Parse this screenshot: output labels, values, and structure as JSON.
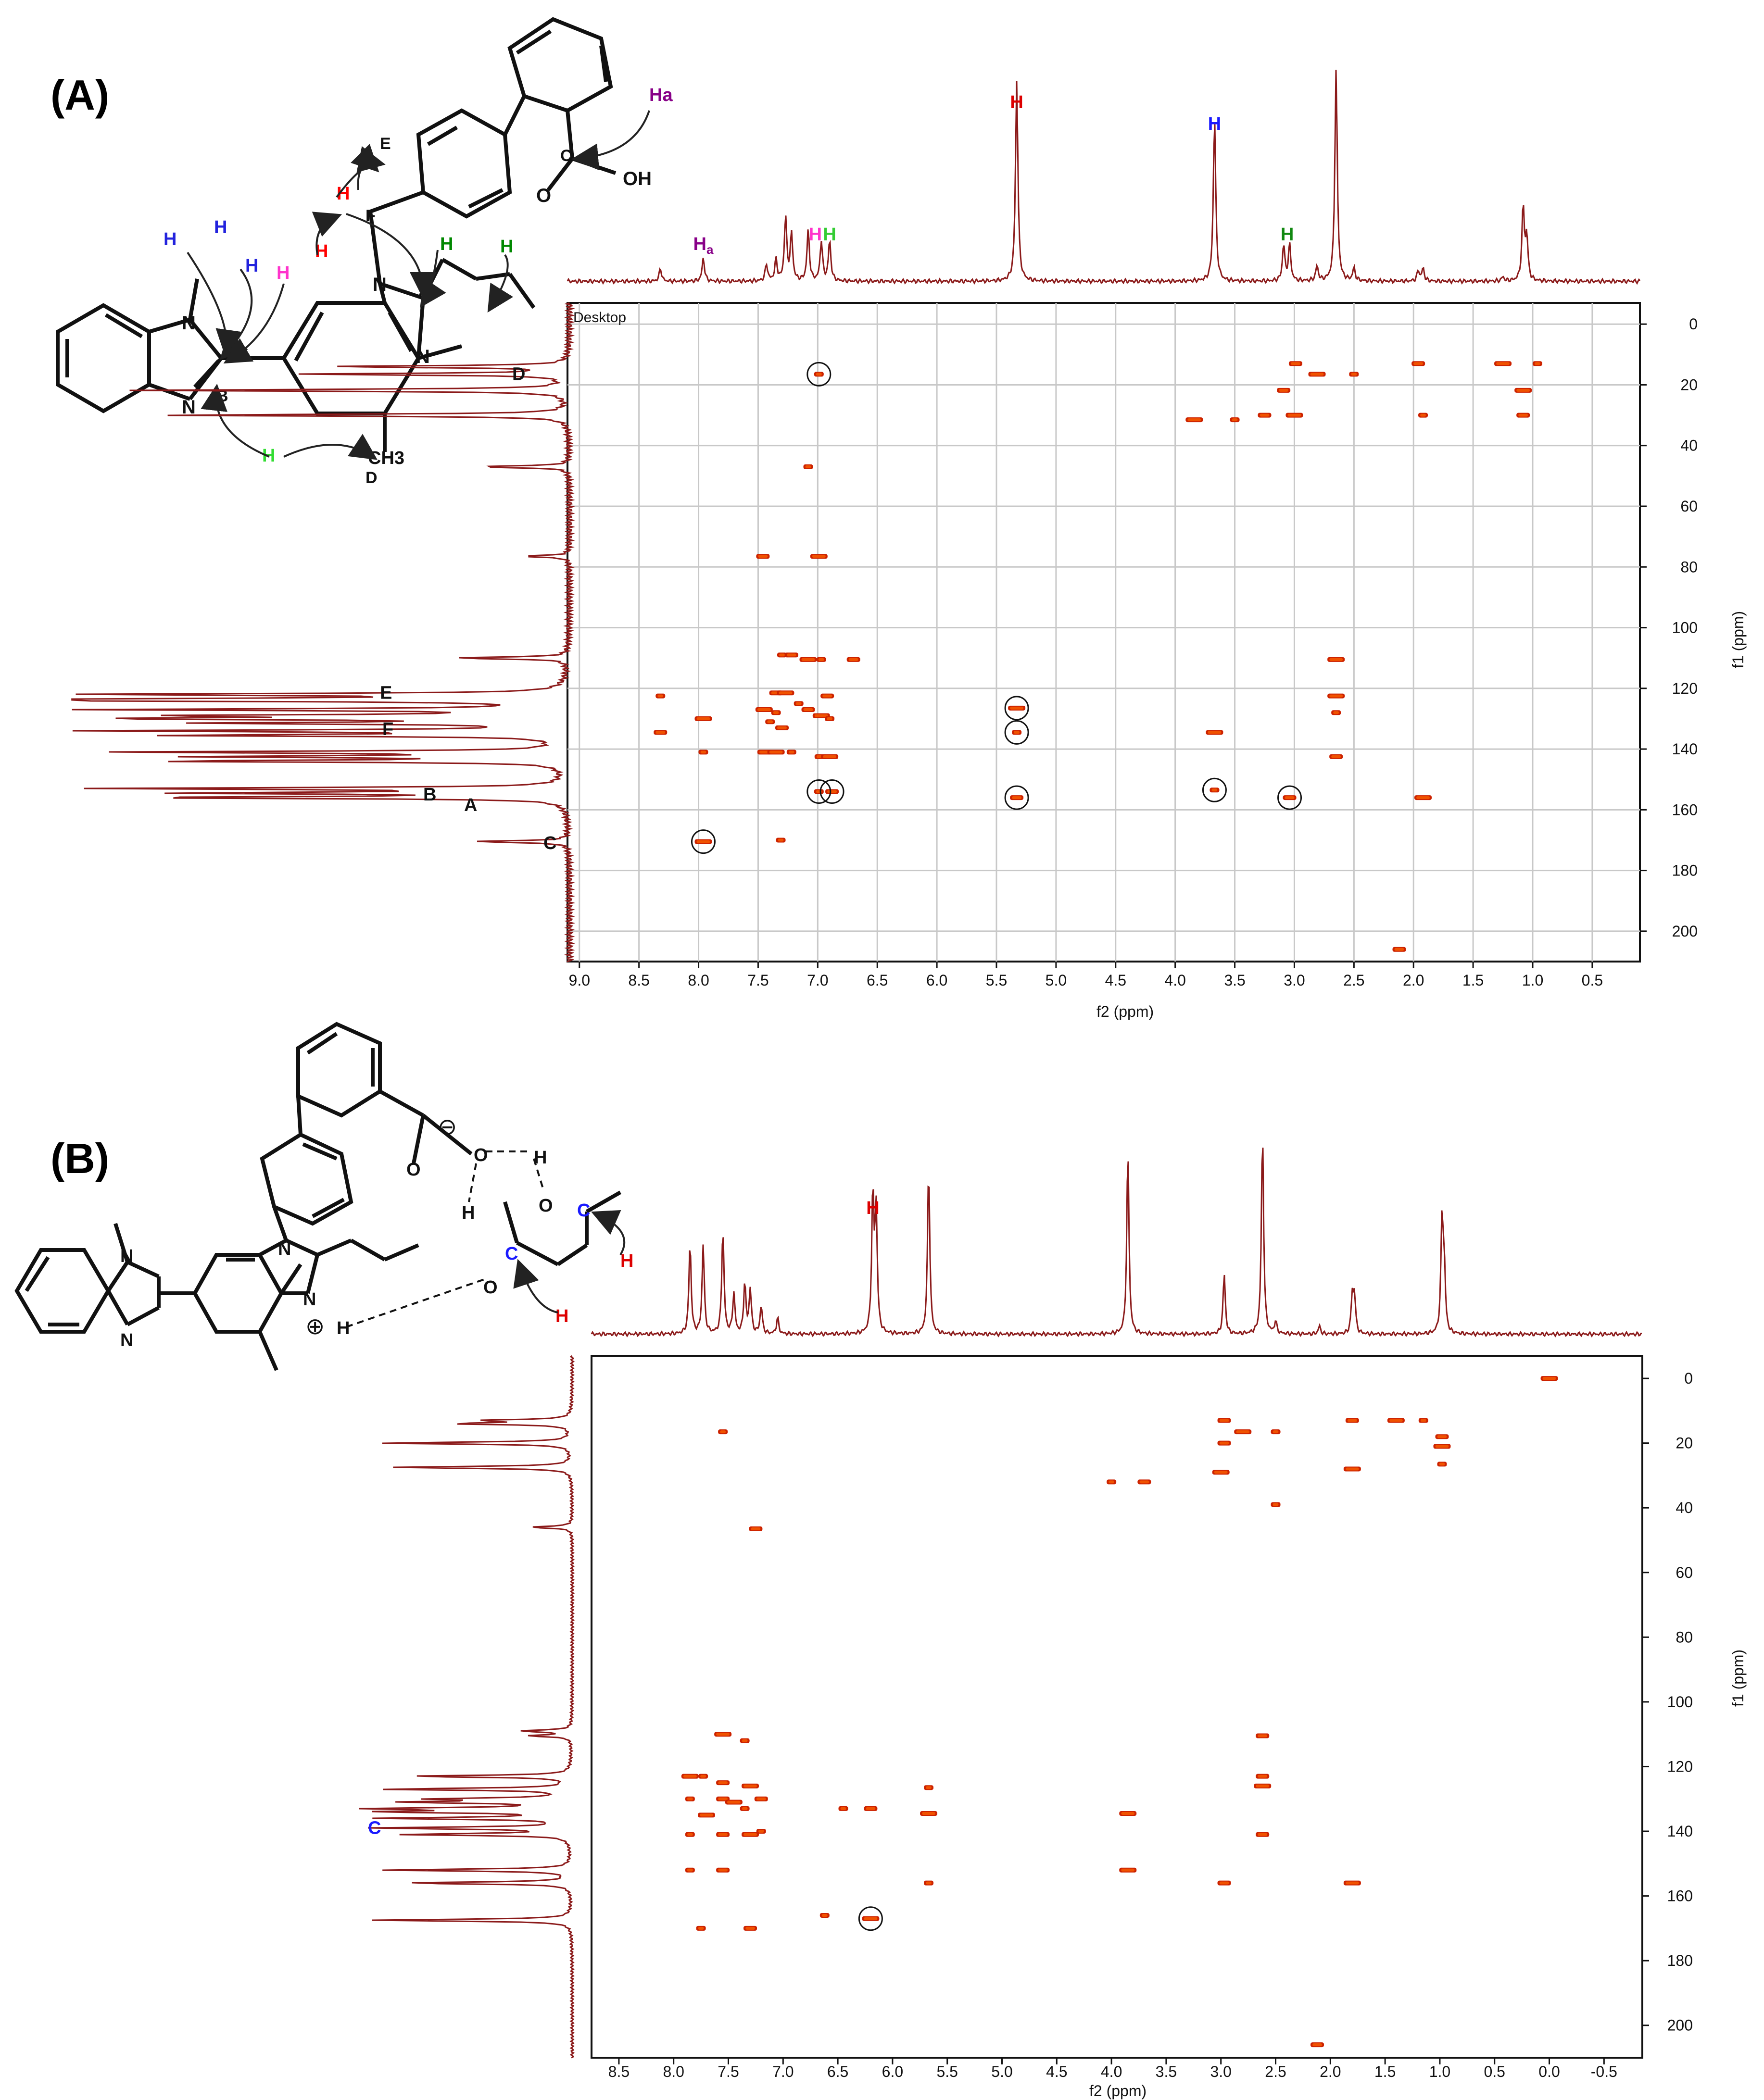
{
  "panels": [
    {
      "label": "(A)",
      "corner_label": "Desktop",
      "xlabel": "f2 (ppm)",
      "ylabel": "f1 (ppm)",
      "xlim": [
        9.1,
        0.1
      ],
      "ylim": [
        -7,
        210
      ],
      "x_ticks": [
        "9.0",
        "8.5",
        "8.0",
        "7.5",
        "7.0",
        "6.5",
        "6.0",
        "5.5",
        "5.0",
        "4.5",
        "4.0",
        "3.5",
        "3.0",
        "2.5",
        "2.0",
        "1.5",
        "1.0",
        "0.5"
      ],
      "y_ticks": [
        "0",
        "20",
        "40",
        "60",
        "80",
        "100",
        "120",
        "140",
        "160",
        "180",
        "200"
      ],
      "molecule_labels": {
        "top_atoms": [
          {
            "text": "H",
            "color": "#2222dd"
          },
          {
            "text": "H",
            "color": "#2222dd"
          },
          {
            "text": "H",
            "color": "#2222dd"
          },
          {
            "text": "H",
            "color": "#ff33cc"
          },
          {
            "text": "H",
            "color": "#ff0000"
          },
          {
            "text": "H",
            "color": "#ff0000"
          },
          {
            "text": "H",
            "color": "#008800"
          },
          {
            "text": "H",
            "color": "#008800"
          },
          {
            "text": "H",
            "color": "#33dd33"
          },
          {
            "text": "Ha",
            "color": "#880088"
          }
        ],
        "letters": [
          "A",
          "B",
          "C",
          "D",
          "E",
          "F",
          "N",
          "N",
          "N",
          "N",
          "O",
          "OH",
          "CH3"
        ]
      },
      "top_peak_labels": [
        {
          "text": "H",
          "sub": "a",
          "color": "#880088"
        },
        {
          "text": "H",
          "color": "#ff33cc"
        },
        {
          "text": "H",
          "color": "#33cc33"
        },
        {
          "text": "H",
          "color": "#dd0000"
        },
        {
          "text": "H",
          "color": "#1a1aff"
        },
        {
          "text": "H",
          "color": "#118811"
        }
      ],
      "side_peak_labels": [
        "D",
        "E",
        "F",
        "B",
        "A",
        "C"
      ]
    },
    {
      "label": "(B)",
      "xlabel": "f2 (ppm)",
      "ylabel": "f1 (ppm)",
      "xlim": [
        8.75,
        -0.85
      ],
      "ylim": [
        -7,
        210
      ],
      "x_ticks": [
        "8.5",
        "8.0",
        "7.5",
        "7.0",
        "6.5",
        "6.0",
        "5.5",
        "5.0",
        "4.5",
        "4.0",
        "3.5",
        "3.0",
        "2.5",
        "2.0",
        "1.5",
        "1.0",
        "0.5",
        "0.0",
        "-0.5"
      ],
      "y_ticks": [
        "0",
        "20",
        "40",
        "60",
        "80",
        "100",
        "120",
        "140",
        "160",
        "180",
        "200"
      ],
      "molecule_labels": {
        "charges": [
          "⊖",
          "⊕"
        ],
        "atoms": [
          "N",
          "N",
          "N",
          "N",
          "O",
          "O",
          "O",
          "O",
          "H",
          "H",
          "H"
        ],
        "colored_atoms": [
          {
            "text": "C",
            "color": "#1a1aff"
          },
          {
            "text": "C",
            "color": "#1a1aff"
          },
          {
            "text": "H",
            "color": "#dd0000"
          },
          {
            "text": "H",
            "color": "#dd0000"
          }
        ]
      },
      "top_peak_labels": [
        {
          "text": "H",
          "color": "#dd0000"
        }
      ],
      "side_peak_labels": [
        {
          "text": "C",
          "color": "#1a1aff"
        }
      ]
    }
  ],
  "chart_data": [
    {
      "type": "heatmap",
      "title": "(A)",
      "xlabel": "f2 (ppm)",
      "ylabel": "f1 (ppm)",
      "xlim": [
        9.1,
        0.1
      ],
      "ylim": [
        -7,
        210
      ],
      "grid": true,
      "top_spectrum_peaks": [
        [
          8.32,
          0.06
        ],
        [
          7.96,
          0.11
        ],
        [
          7.43,
          0.08
        ],
        [
          7.35,
          0.1
        ],
        [
          7.27,
          0.3
        ],
        [
          7.22,
          0.22
        ],
        [
          7.08,
          0.24
        ],
        [
          6.97,
          0.19
        ],
        [
          6.9,
          0.19
        ],
        [
          5.33,
          0.95
        ],
        [
          3.67,
          0.77
        ],
        [
          3.09,
          0.17
        ],
        [
          3.04,
          0.17
        ],
        [
          2.81,
          0.07
        ],
        [
          2.65,
          1.0
        ],
        [
          2.5,
          0.06
        ],
        [
          1.96,
          0.05
        ],
        [
          1.92,
          0.06
        ],
        [
          1.25,
          0.02
        ],
        [
          1.08,
          0.35
        ],
        [
          1.05,
          0.2
        ]
      ],
      "side_spectrum_peaks": [
        [
          14.0,
          0.5
        ],
        [
          16.5,
          0.55
        ],
        [
          21.8,
          0.9
        ],
        [
          30.0,
          0.85
        ],
        [
          47.0,
          0.2
        ],
        [
          76.5,
          0.1
        ],
        [
          110.0,
          0.25
        ],
        [
          122.0,
          0.98
        ],
        [
          123.5,
          0.7
        ],
        [
          124.0,
          0.92
        ],
        [
          127.0,
          0.95
        ],
        [
          129.0,
          0.75
        ],
        [
          130.0,
          0.9
        ],
        [
          131.5,
          0.7
        ],
        [
          134.0,
          0.95
        ],
        [
          135.5,
          0.8
        ],
        [
          141.0,
          0.92
        ],
        [
          142.5,
          0.7
        ],
        [
          144.0,
          0.85
        ],
        [
          153.0,
          0.95
        ],
        [
          154.5,
          0.75
        ],
        [
          156.0,
          0.9
        ],
        [
          170.5,
          0.2
        ]
      ],
      "cross_peaks": [
        [
          6.99,
          16.5
        ],
        [
          2.99,
          13.0
        ],
        [
          2.81,
          16.5
        ],
        [
          2.5,
          16.5
        ],
        [
          1.96,
          13.0
        ],
        [
          1.25,
          13.0
        ],
        [
          0.96,
          13.0
        ],
        [
          3.09,
          21.8
        ],
        [
          1.08,
          21.8
        ],
        [
          1.92,
          30.0
        ],
        [
          1.08,
          30.0
        ],
        [
          3.84,
          31.5
        ],
        [
          3.5,
          31.5
        ],
        [
          3.25,
          30.0
        ],
        [
          3.0,
          30.0
        ],
        [
          7.08,
          47.0
        ],
        [
          7.46,
          76.5
        ],
        [
          6.99,
          76.5
        ],
        [
          7.3,
          109.0
        ],
        [
          7.22,
          109.0
        ],
        [
          7.08,
          110.5
        ],
        [
          6.97,
          110.5
        ],
        [
          6.7,
          110.5
        ],
        [
          2.65,
          110.5
        ],
        [
          8.32,
          122.5
        ],
        [
          7.35,
          121.5
        ],
        [
          7.27,
          121.5
        ],
        [
          7.16,
          125.0
        ],
        [
          6.92,
          122.5
        ],
        [
          7.45,
          127.0
        ],
        [
          7.35,
          128.0
        ],
        [
          7.08,
          127.0
        ],
        [
          2.65,
          122.5
        ],
        [
          2.65,
          128.0
        ],
        [
          8.32,
          134.5
        ],
        [
          7.96,
          130.0
        ],
        [
          7.4,
          131.0
        ],
        [
          7.3,
          133.0
        ],
        [
          6.97,
          129.0
        ],
        [
          6.9,
          130.0
        ],
        [
          7.45,
          141.0
        ],
        [
          7.35,
          141.0
        ],
        [
          7.22,
          141.0
        ],
        [
          6.97,
          142.5
        ],
        [
          6.9,
          142.5
        ],
        [
          7.96,
          141.0
        ],
        [
          2.65,
          142.5
        ],
        [
          5.33,
          126.5
        ],
        [
          5.33,
          134.5
        ],
        [
          5.33,
          156.0
        ],
        [
          3.67,
          134.5
        ],
        [
          3.67,
          153.5
        ],
        [
          3.04,
          156.0
        ],
        [
          1.92,
          156.0
        ],
        [
          6.99,
          154.0
        ],
        [
          6.88,
          154.0
        ],
        [
          7.96,
          170.5
        ],
        [
          7.31,
          170.0
        ],
        [
          2.12,
          206.0
        ]
      ],
      "circled_peaks": [
        [
          6.99,
          16.5
        ],
        [
          5.33,
          126.5
        ],
        [
          5.33,
          134.5
        ],
        [
          5.33,
          156.0
        ],
        [
          6.99,
          154.0
        ],
        [
          6.88,
          154.0
        ],
        [
          7.96,
          170.5
        ],
        [
          3.67,
          153.5
        ],
        [
          3.04,
          156.0
        ]
      ]
    },
    {
      "type": "heatmap",
      "title": "(B)",
      "xlabel": "f2 (ppm)",
      "ylabel": "f1 (ppm)",
      "xlim": [
        8.75,
        -0.85
      ],
      "ylim": [
        -7,
        210
      ],
      "grid": false,
      "top_spectrum_peaks": [
        [
          7.85,
          0.45
        ],
        [
          7.73,
          0.44
        ],
        [
          7.55,
          0.52
        ],
        [
          7.45,
          0.2
        ],
        [
          7.35,
          0.25
        ],
        [
          7.3,
          0.22
        ],
        [
          7.2,
          0.14
        ],
        [
          7.05,
          0.08
        ],
        [
          6.18,
          0.69
        ],
        [
          6.15,
          0.6
        ],
        [
          5.67,
          0.83
        ],
        [
          3.85,
          0.91
        ],
        [
          2.97,
          0.3
        ],
        [
          2.62,
          1.0
        ],
        [
          2.5,
          0.06
        ],
        [
          2.1,
          0.04
        ],
        [
          1.8,
          0.18
        ],
        [
          1.78,
          0.18
        ],
        [
          0.98,
          0.56
        ],
        [
          0.96,
          0.3
        ]
      ],
      "side_spectrum_peaks": [
        [
          13.0,
          0.4
        ],
        [
          14.0,
          0.55
        ],
        [
          20.0,
          0.92
        ],
        [
          27.5,
          0.85
        ],
        [
          46.0,
          0.2
        ],
        [
          109.0,
          0.25
        ],
        [
          110.5,
          0.2
        ],
        [
          123.0,
          0.78
        ],
        [
          127.0,
          0.9
        ],
        [
          130.0,
          0.6
        ],
        [
          131.0,
          0.75
        ],
        [
          133.0,
          0.95
        ],
        [
          134.0,
          0.85
        ],
        [
          136.0,
          0.9
        ],
        [
          139.0,
          0.95
        ],
        [
          141.0,
          0.8
        ],
        [
          152.0,
          0.9
        ],
        [
          156.0,
          0.82
        ],
        [
          167.5,
          0.95
        ]
      ],
      "cross_peaks": [
        [
          7.55,
          16.5
        ],
        [
          2.97,
          13.0
        ],
        [
          2.8,
          16.5
        ],
        [
          2.5,
          16.5
        ],
        [
          1.8,
          13.0
        ],
        [
          1.4,
          13.0
        ],
        [
          1.15,
          13.0
        ],
        [
          0.98,
          18.0
        ],
        [
          0.98,
          21.0
        ],
        [
          0.98,
          26.5
        ],
        [
          2.97,
          20.0
        ],
        [
          1.8,
          28.0
        ],
        [
          4.0,
          32.0
        ],
        [
          3.7,
          32.0
        ],
        [
          3.0,
          29.0
        ],
        [
          2.5,
          39.0
        ],
        [
          7.25,
          46.5
        ],
        [
          7.55,
          110.0
        ],
        [
          7.35,
          112.0
        ],
        [
          2.62,
          110.5
        ],
        [
          7.85,
          123.0
        ],
        [
          7.73,
          123.0
        ],
        [
          7.55,
          125.0
        ],
        [
          7.3,
          126.0
        ],
        [
          5.67,
          126.5
        ],
        [
          2.62,
          123.0
        ],
        [
          2.62,
          126.0
        ],
        [
          7.85,
          130.0
        ],
        [
          7.55,
          130.0
        ],
        [
          7.45,
          131.0
        ],
        [
          7.35,
          133.0
        ],
        [
          7.2,
          130.0
        ],
        [
          7.7,
          135.0
        ],
        [
          6.45,
          133.0
        ],
        [
          6.2,
          133.0
        ],
        [
          5.67,
          134.5
        ],
        [
          7.85,
          141.0
        ],
        [
          7.55,
          141.0
        ],
        [
          7.3,
          141.0
        ],
        [
          7.2,
          140.0
        ],
        [
          2.62,
          141.0
        ],
        [
          3.85,
          134.5
        ],
        [
          7.85,
          152.0
        ],
        [
          7.55,
          152.0
        ],
        [
          3.85,
          152.0
        ],
        [
          5.67,
          156.0
        ],
        [
          2.97,
          156.0
        ],
        [
          1.8,
          156.0
        ],
        [
          7.75,
          170.0
        ],
        [
          7.3,
          170.0
        ],
        [
          6.2,
          167.0
        ],
        [
          6.62,
          166.0
        ],
        [
          2.12,
          206.0
        ],
        [
          0.0,
          0.0
        ]
      ],
      "circled_peaks": [
        [
          6.2,
          167.0
        ]
      ]
    }
  ]
}
